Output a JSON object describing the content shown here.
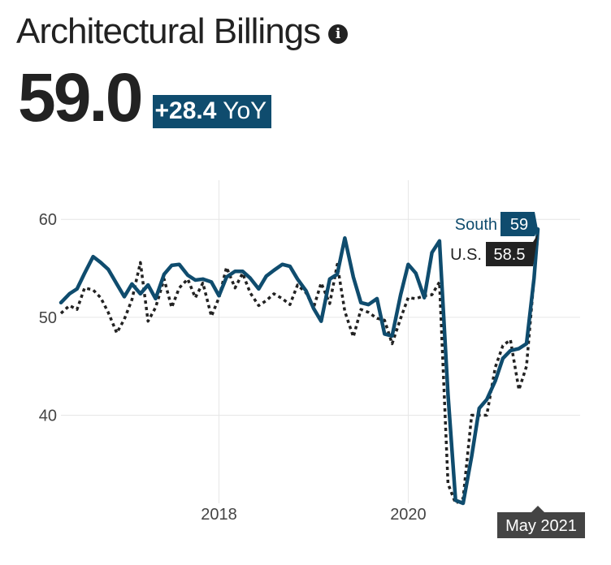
{
  "header": {
    "title": "Architectural Billings",
    "info_icon": "info-icon",
    "value": "59.0",
    "yoy_change": "+28.4",
    "yoy_unit": "YoY"
  },
  "colors": {
    "south": "#0f4c6e",
    "us": "#222222",
    "grid": "#e6e6e6"
  },
  "chart_data": {
    "type": "line",
    "title": "",
    "xlabel": "",
    "ylabel": "",
    "xlim": [
      2016.33,
      2021.37
    ],
    "ylim": [
      31,
      64
    ],
    "x_ticks": [
      2018,
      2020
    ],
    "x_tick_labels": [
      "2018",
      "2020"
    ],
    "y_ticks": [
      40,
      50,
      60
    ],
    "y_tick_labels": [
      "40",
      "50",
      "60"
    ],
    "grid": true,
    "hover_label": "May 2021",
    "series": [
      {
        "name": "South",
        "style": "solid",
        "end_label": "59",
        "points": [
          [
            2016.33,
            51.5
          ],
          [
            2016.42,
            52.4
          ],
          [
            2016.5,
            52.9
          ],
          [
            2016.58,
            54.5
          ],
          [
            2016.67,
            56.2
          ],
          [
            2016.75,
            55.6
          ],
          [
            2016.83,
            54.9
          ],
          [
            2016.92,
            53.4
          ],
          [
            2017.0,
            52.1
          ],
          [
            2017.08,
            53.4
          ],
          [
            2017.17,
            52.4
          ],
          [
            2017.25,
            53.3
          ],
          [
            2017.33,
            51.9
          ],
          [
            2017.42,
            54.4
          ],
          [
            2017.5,
            55.3
          ],
          [
            2017.58,
            55.4
          ],
          [
            2017.67,
            54.3
          ],
          [
            2017.75,
            53.8
          ],
          [
            2017.83,
            53.9
          ],
          [
            2017.92,
            53.6
          ],
          [
            2018.0,
            52.2
          ],
          [
            2018.08,
            54.1
          ],
          [
            2018.17,
            54.7
          ],
          [
            2018.25,
            54.7
          ],
          [
            2018.33,
            54.0
          ],
          [
            2018.42,
            52.9
          ],
          [
            2018.5,
            54.2
          ],
          [
            2018.58,
            54.8
          ],
          [
            2018.67,
            55.4
          ],
          [
            2018.75,
            55.2
          ],
          [
            2018.83,
            53.9
          ],
          [
            2018.92,
            52.7
          ],
          [
            2019.0,
            50.9
          ],
          [
            2019.08,
            49.6
          ],
          [
            2019.17,
            53.9
          ],
          [
            2019.25,
            54.4
          ],
          [
            2019.33,
            58.1
          ],
          [
            2019.42,
            54.1
          ],
          [
            2019.5,
            51.5
          ],
          [
            2019.58,
            51.3
          ],
          [
            2019.67,
            51.9
          ],
          [
            2019.75,
            48.3
          ],
          [
            2019.83,
            48.1
          ],
          [
            2019.92,
            52.3
          ],
          [
            2020.0,
            55.4
          ],
          [
            2020.08,
            54.5
          ],
          [
            2020.17,
            52.0
          ],
          [
            2020.25,
            56.6
          ],
          [
            2020.33,
            57.8
          ],
          [
            2020.42,
            42.1
          ],
          [
            2020.5,
            31.3
          ],
          [
            2020.58,
            31.0
          ],
          [
            2020.67,
            35.8
          ],
          [
            2020.75,
            40.7
          ],
          [
            2020.83,
            41.6
          ],
          [
            2020.92,
            43.5
          ],
          [
            2021.0,
            45.8
          ],
          [
            2021.08,
            46.6
          ],
          [
            2021.17,
            46.8
          ],
          [
            2021.25,
            47.3
          ],
          [
            2021.33,
            54.0
          ],
          [
            2021.37,
            59.0
          ]
        ]
      },
      {
        "name": "U.S.",
        "style": "dotted",
        "end_label": "58.5",
        "points": [
          [
            2016.33,
            50.4
          ],
          [
            2016.42,
            51.2
          ],
          [
            2016.5,
            50.8
          ],
          [
            2016.58,
            53.0
          ],
          [
            2016.67,
            52.8
          ],
          [
            2016.75,
            52.0
          ],
          [
            2016.83,
            50.5
          ],
          [
            2016.92,
            48.4
          ],
          [
            2017.0,
            49.8
          ],
          [
            2017.08,
            51.8
          ],
          [
            2017.17,
            55.6
          ],
          [
            2017.25,
            49.6
          ],
          [
            2017.33,
            51.0
          ],
          [
            2017.42,
            53.9
          ],
          [
            2017.5,
            51.0
          ],
          [
            2017.58,
            53.0
          ],
          [
            2017.67,
            53.9
          ],
          [
            2017.75,
            52.0
          ],
          [
            2017.83,
            53.5
          ],
          [
            2017.92,
            50.1
          ],
          [
            2018.0,
            52.0
          ],
          [
            2018.08,
            55.1
          ],
          [
            2018.17,
            53.0
          ],
          [
            2018.25,
            54.5
          ],
          [
            2018.33,
            52.5
          ],
          [
            2018.42,
            51.2
          ],
          [
            2018.5,
            51.7
          ],
          [
            2018.58,
            52.4
          ],
          [
            2018.67,
            51.9
          ],
          [
            2018.75,
            51.3
          ],
          [
            2018.83,
            53.3
          ],
          [
            2018.92,
            52.5
          ],
          [
            2019.0,
            51.0
          ],
          [
            2019.08,
            53.5
          ],
          [
            2019.17,
            51.4
          ],
          [
            2019.25,
            55.4
          ],
          [
            2019.33,
            50.6
          ],
          [
            2019.42,
            48.0
          ],
          [
            2019.5,
            50.8
          ],
          [
            2019.58,
            50.5
          ],
          [
            2019.67,
            49.9
          ],
          [
            2019.75,
            49.7
          ],
          [
            2019.83,
            47.3
          ],
          [
            2019.92,
            49.9
          ],
          [
            2020.0,
            52.0
          ],
          [
            2020.08,
            51.9
          ],
          [
            2020.17,
            52.2
          ],
          [
            2020.25,
            52.3
          ],
          [
            2020.33,
            53.6
          ],
          [
            2020.42,
            33.0
          ],
          [
            2020.5,
            31.0
          ],
          [
            2020.58,
            31.5
          ],
          [
            2020.67,
            40.0
          ],
          [
            2020.75,
            40.0
          ],
          [
            2020.83,
            40.0
          ],
          [
            2020.92,
            44.9
          ],
          [
            2021.0,
            47.1
          ],
          [
            2021.08,
            47.7
          ],
          [
            2021.17,
            42.6
          ],
          [
            2021.25,
            45.0
          ],
          [
            2021.33,
            54.0
          ],
          [
            2021.37,
            58.5
          ]
        ]
      }
    ]
  }
}
